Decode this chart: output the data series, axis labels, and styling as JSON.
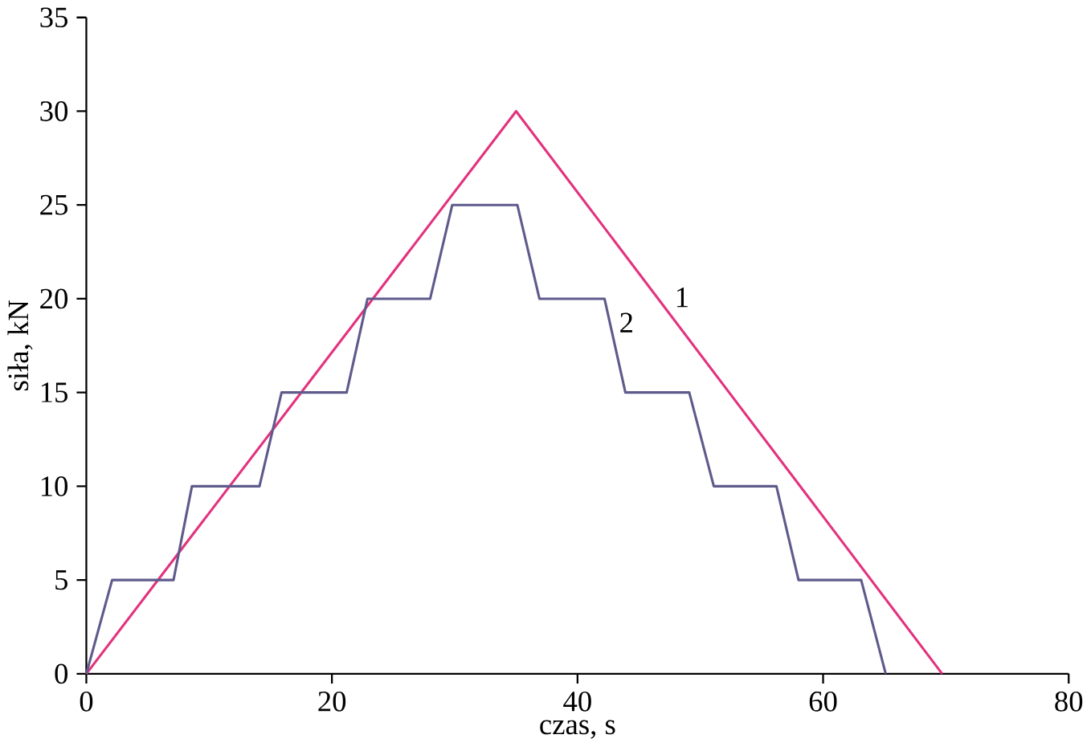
{
  "chart_data": {
    "type": "line",
    "xlabel": "czas, s",
    "ylabel": "siła, kN",
    "xlim": [
      0,
      80
    ],
    "ylim": [
      0,
      35
    ],
    "xticks": [
      0,
      20,
      40,
      60,
      80
    ],
    "yticks": [
      0,
      5,
      10,
      15,
      20,
      25,
      30,
      35
    ],
    "grid": false,
    "marker": "none",
    "line_style": "solid",
    "series": [
      {
        "name": "1",
        "color": "#e2337f",
        "x": [
          0,
          35,
          69.7
        ],
        "values": [
          0,
          30,
          0
        ]
      },
      {
        "name": "2",
        "color": "#5e5b8c",
        "x": [
          0,
          2.1,
          7.1,
          8.6,
          14.1,
          15.9,
          21.2,
          22.9,
          28,
          29.8,
          35.1,
          36.9,
          42.2,
          43.9,
          49.1,
          51.1,
          56.2,
          58,
          63.1,
          65.1
        ],
        "values": [
          0,
          5,
          5,
          10,
          10,
          15,
          15,
          20,
          20,
          25,
          25,
          20,
          20,
          15,
          15,
          10,
          10,
          5,
          5,
          0
        ]
      }
    ]
  }
}
